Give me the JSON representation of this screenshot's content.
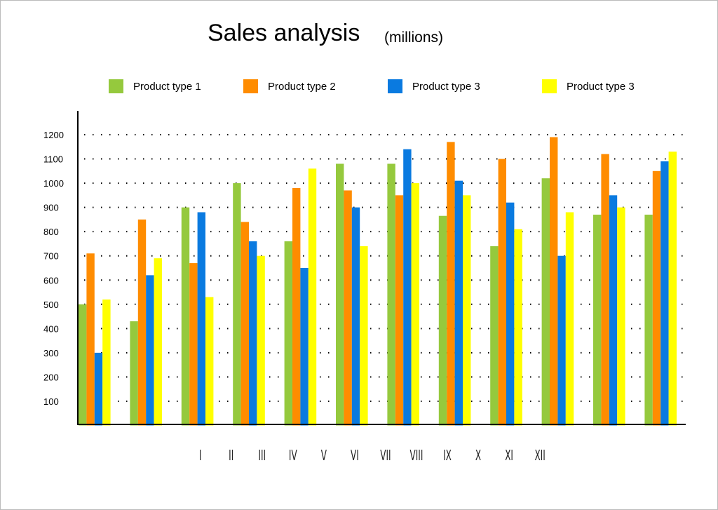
{
  "chart_data": {
    "type": "bar",
    "title": "Sales analysis",
    "subtitle": "(millions)",
    "xlabel": "",
    "ylabel": "",
    "categories": [
      "I",
      "II",
      "III",
      "IV",
      "V",
      "VI",
      "VII",
      "VIII",
      "IX",
      "X",
      "XI",
      "XII"
    ],
    "yticks": [
      100,
      200,
      300,
      400,
      500,
      600,
      700,
      800,
      900,
      1000,
      1100,
      1200
    ],
    "ylim": [
      0,
      1200
    ],
    "grid": true,
    "grid_style": "dotted",
    "legend_position": "top",
    "series": [
      {
        "name": "Product type 1",
        "color": "#95c93d",
        "values": [
          500,
          430,
          900,
          1000,
          760,
          1080,
          1080,
          865,
          740,
          1020,
          870,
          870
        ]
      },
      {
        "name": "Product type 2",
        "color": "#ff8c00",
        "values": [
          710,
          850,
          670,
          840,
          980,
          970,
          950,
          1170,
          1100,
          1190,
          1120,
          1050
        ]
      },
      {
        "name": "Product type 3",
        "color": "#0a7ae0",
        "values": [
          300,
          620,
          880,
          760,
          650,
          900,
          1140,
          1010,
          920,
          700,
          950,
          1090
        ]
      },
      {
        "name": "Product type 3",
        "color": "#ffff00",
        "values": [
          520,
          690,
          530,
          700,
          1060,
          740,
          1000,
          950,
          810,
          880,
          900,
          1130
        ]
      }
    ]
  }
}
